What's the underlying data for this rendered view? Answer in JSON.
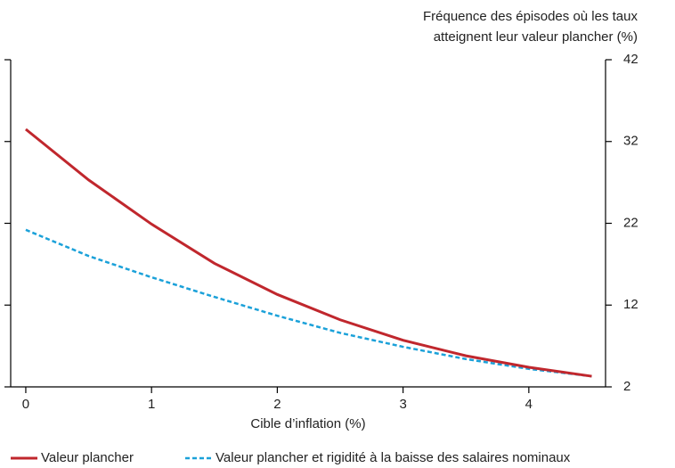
{
  "chart_data": {
    "type": "line",
    "y_label": [
      "Fréquence des épisodes où les taux",
      "atteignent leur valeur plancher (%)"
    ],
    "x_label": "Cible d’inflation (%)",
    "x": [
      0,
      0.5,
      1,
      1.5,
      2,
      2.5,
      3,
      3.5,
      4,
      4.5
    ],
    "series": [
      {
        "name": "Valeur plancher",
        "color": "#c0272d",
        "dashed": false,
        "axis": "y2",
        "values": [
          33.5,
          27.3,
          21.9,
          17.1,
          13.3,
          10.2,
          7.7,
          5.8,
          4.4,
          3.3
        ]
      },
      {
        "name": "Valeur plancher et rigidité à la baisse des salaires nominaux",
        "color": "#1ba1d9",
        "dashed": true,
        "axis": "y2",
        "values": [
          21.2,
          18.0,
          15.4,
          13.0,
          10.7,
          8.6,
          6.9,
          5.4,
          4.2,
          3.3
        ]
      }
    ],
    "xlim": [
      -0.12,
      4.61
    ],
    "xticks": [
      0,
      1,
      2,
      3,
      4
    ],
    "y2lim": [
      2,
      42
    ],
    "y2ticks": [
      2,
      12,
      22,
      32,
      42
    ],
    "grid": false
  }
}
